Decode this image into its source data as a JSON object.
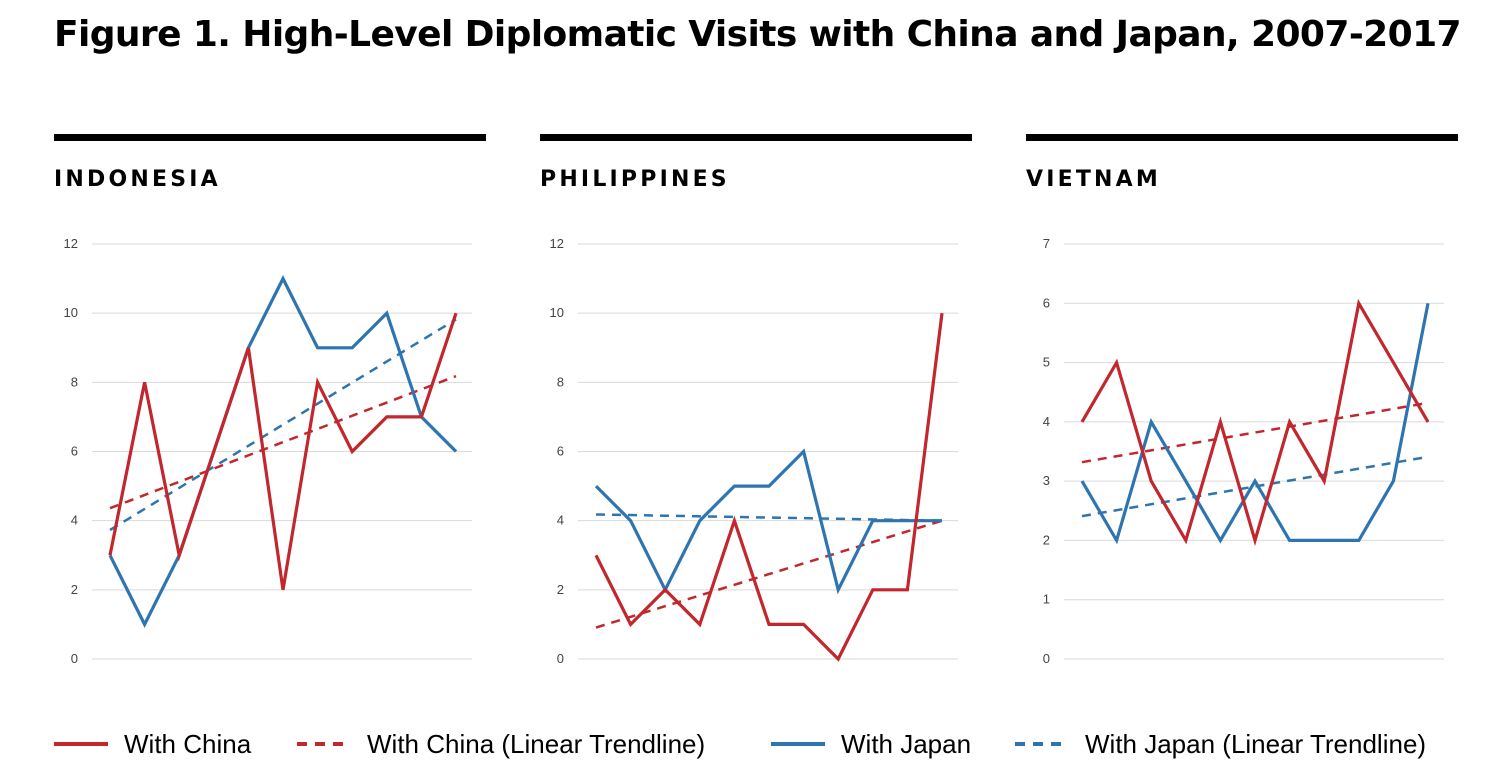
{
  "figure": {
    "title": "Figure 1.  High-Level Diplomatic Visits with China and Japan, 2007-2017"
  },
  "legend": {
    "china": "With China",
    "china_trend": "With China (Linear Trendline)",
    "japan": "With Japan",
    "japan_trend": "With Japan (Linear Trendline)"
  },
  "colors": {
    "china": "#c1272d",
    "japan": "#2e75b0",
    "grid": "#d9d9d9"
  },
  "chart_data": [
    {
      "type": "line",
      "panel": "INDONESIA",
      "ylim": [
        0,
        12
      ],
      "yticks": [
        0,
        2,
        4,
        6,
        8,
        10,
        12
      ],
      "series": [
        {
          "name": "With China",
          "values": [
            3,
            8,
            3,
            6,
            9,
            2,
            8,
            6,
            7,
            7,
            10
          ]
        },
        {
          "name": "With Japan",
          "values": [
            3,
            1,
            3,
            6,
            9,
            11,
            9,
            9,
            10,
            7,
            6
          ]
        }
      ],
      "trendlines": [
        {
          "name": "With China (Linear Trendline)",
          "start": 4.36,
          "end": 8.18
        },
        {
          "name": "With Japan (Linear Trendline)",
          "start": 3.73,
          "end": 9.82
        }
      ]
    },
    {
      "type": "line",
      "panel": "PHILIPPINES",
      "ylim": [
        0,
        12
      ],
      "yticks": [
        0,
        2,
        4,
        6,
        8,
        10,
        12
      ],
      "series": [
        {
          "name": "With China",
          "values": [
            3,
            1,
            2,
            1,
            4,
            1,
            1,
            0,
            2,
            2,
            10
          ]
        },
        {
          "name": "With Japan",
          "values": [
            5,
            4,
            2,
            4,
            5,
            5,
            6,
            2,
            4,
            4,
            4
          ]
        }
      ],
      "trendlines": [
        {
          "name": "With China (Linear Trendline)",
          "start": 0.91,
          "end": 4.0
        },
        {
          "name": "With Japan (Linear Trendline)",
          "start": 4.18,
          "end": 4.0
        }
      ]
    },
    {
      "type": "line",
      "panel": "VIETNAM",
      "ylim": [
        0,
        7
      ],
      "yticks": [
        0,
        1,
        2,
        3,
        4,
        5,
        6,
        7
      ],
      "series": [
        {
          "name": "With China",
          "values": [
            4,
            5,
            3,
            2,
            4,
            2,
            4,
            3,
            6,
            5,
            4
          ]
        },
        {
          "name": "With Japan",
          "values": [
            3,
            2,
            4,
            3,
            2,
            3,
            2,
            2,
            2,
            3,
            6
          ]
        }
      ],
      "trendlines": [
        {
          "name": "With China (Linear Trendline)",
          "start": 3.32,
          "end": 4.32
        },
        {
          "name": "With Japan (Linear Trendline)",
          "start": 2.41,
          "end": 3.41
        }
      ]
    }
  ]
}
